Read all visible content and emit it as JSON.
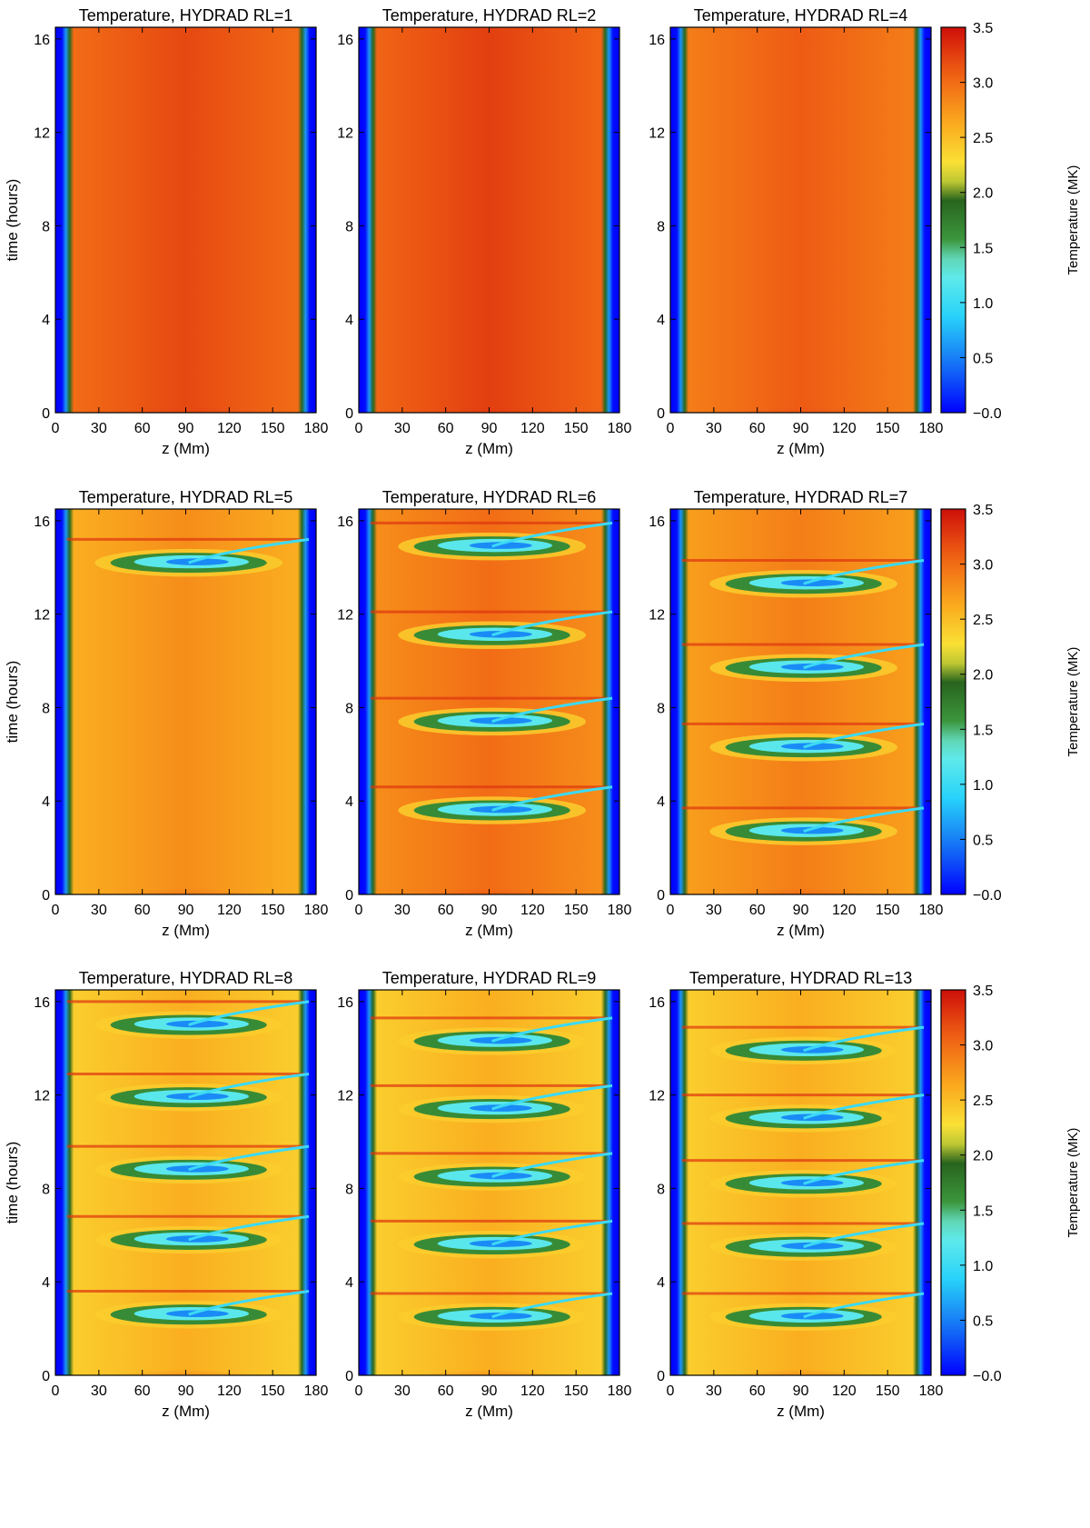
{
  "figure": {
    "xlabel": "z (Mm)",
    "ylabel": "time (hours)",
    "colorbar_label": "Temperature (MK)",
    "colorbar_ticks": [
      "3.5",
      "3.0",
      "2.5",
      "2.0",
      "1.5",
      "1.0",
      "0.5",
      "−0.0"
    ],
    "x_ticks": [
      "0",
      "30",
      "60",
      "90",
      "120",
      "150",
      "180"
    ],
    "y_ticks": [
      "0",
      "4",
      "8",
      "12",
      "16"
    ]
  },
  "chart_data": [
    {
      "type": "heatmap",
      "title": "Temperature, HYDRAD RL=1",
      "rl": 1,
      "xlabel": "z (Mm)",
      "ylabel": "time (hours)",
      "xlim": [
        0,
        180
      ],
      "ylim": [
        0,
        16.5
      ],
      "zlim": [
        0,
        3.5
      ],
      "zunit": "MK",
      "base_temperature": 3.2,
      "cooling_episodes": []
    },
    {
      "type": "heatmap",
      "title": "Temperature, HYDRAD RL=2",
      "rl": 2,
      "xlabel": "z (Mm)",
      "ylabel": "time (hours)",
      "xlim": [
        0,
        180
      ],
      "ylim": [
        0,
        16.5
      ],
      "zlim": [
        0,
        3.5
      ],
      "zunit": "MK",
      "base_temperature": 3.25,
      "cooling_episodes": []
    },
    {
      "type": "heatmap",
      "title": "Temperature, HYDRAD RL=4",
      "rl": 4,
      "xlabel": "z (Mm)",
      "ylabel": "time (hours)",
      "xlim": [
        0,
        180
      ],
      "ylim": [
        0,
        16.5
      ],
      "zlim": [
        0,
        3.5
      ],
      "zunit": "MK",
      "base_temperature": 3.1,
      "cooling_episodes": []
    },
    {
      "type": "heatmap",
      "title": "Temperature, HYDRAD RL=5",
      "rl": 5,
      "xlabel": "z (Mm)",
      "ylabel": "time (hours)",
      "xlim": [
        0,
        180
      ],
      "ylim": [
        0,
        16.5
      ],
      "zlim": [
        0,
        3.5
      ],
      "zunit": "MK",
      "base_temperature": 2.8,
      "cooling_episodes": [
        14.2
      ]
    },
    {
      "type": "heatmap",
      "title": "Temperature, HYDRAD RL=6",
      "rl": 6,
      "xlabel": "z (Mm)",
      "ylabel": "time (hours)",
      "xlim": [
        0,
        180
      ],
      "ylim": [
        0,
        16.5
      ],
      "zlim": [
        0,
        3.5
      ],
      "zunit": "MK",
      "base_temperature": 3.0,
      "cooling_episodes": [
        3.6,
        7.4,
        11.1,
        14.9
      ]
    },
    {
      "type": "heatmap",
      "title": "Temperature, HYDRAD RL=7",
      "rl": 7,
      "xlabel": "z (Mm)",
      "ylabel": "time (hours)",
      "xlim": [
        0,
        180
      ],
      "ylim": [
        0,
        16.5
      ],
      "zlim": [
        0,
        3.5
      ],
      "zunit": "MK",
      "base_temperature": 2.9,
      "cooling_episodes": [
        2.7,
        6.3,
        9.7,
        13.3
      ]
    },
    {
      "type": "heatmap",
      "title": "Temperature, HYDRAD RL=8",
      "rl": 8,
      "xlabel": "z (Mm)",
      "ylabel": "time (hours)",
      "xlim": [
        0,
        180
      ],
      "ylim": [
        0,
        16.5
      ],
      "zlim": [
        0,
        3.5
      ],
      "zunit": "MK",
      "base_temperature": 2.6,
      "cooling_episodes": [
        2.6,
        5.8,
        8.8,
        11.9,
        15.0
      ]
    },
    {
      "type": "heatmap",
      "title": "Temperature, HYDRAD RL=9",
      "rl": 9,
      "xlabel": "z (Mm)",
      "ylabel": "time (hours)",
      "xlim": [
        0,
        180
      ],
      "ylim": [
        0,
        16.5
      ],
      "zlim": [
        0,
        3.5
      ],
      "zunit": "MK",
      "base_temperature": 2.6,
      "cooling_episodes": [
        2.5,
        5.6,
        8.5,
        11.4,
        14.3
      ]
    },
    {
      "type": "heatmap",
      "title": "Temperature, HYDRAD RL=13",
      "rl": 13,
      "xlabel": "z (Mm)",
      "ylabel": "time (hours)",
      "xlim": [
        0,
        180
      ],
      "ylim": [
        0,
        16.5
      ],
      "zlim": [
        0,
        3.5
      ],
      "zunit": "MK",
      "base_temperature": 2.6,
      "cooling_episodes": [
        2.5,
        5.5,
        8.2,
        11.0,
        13.9
      ]
    }
  ]
}
